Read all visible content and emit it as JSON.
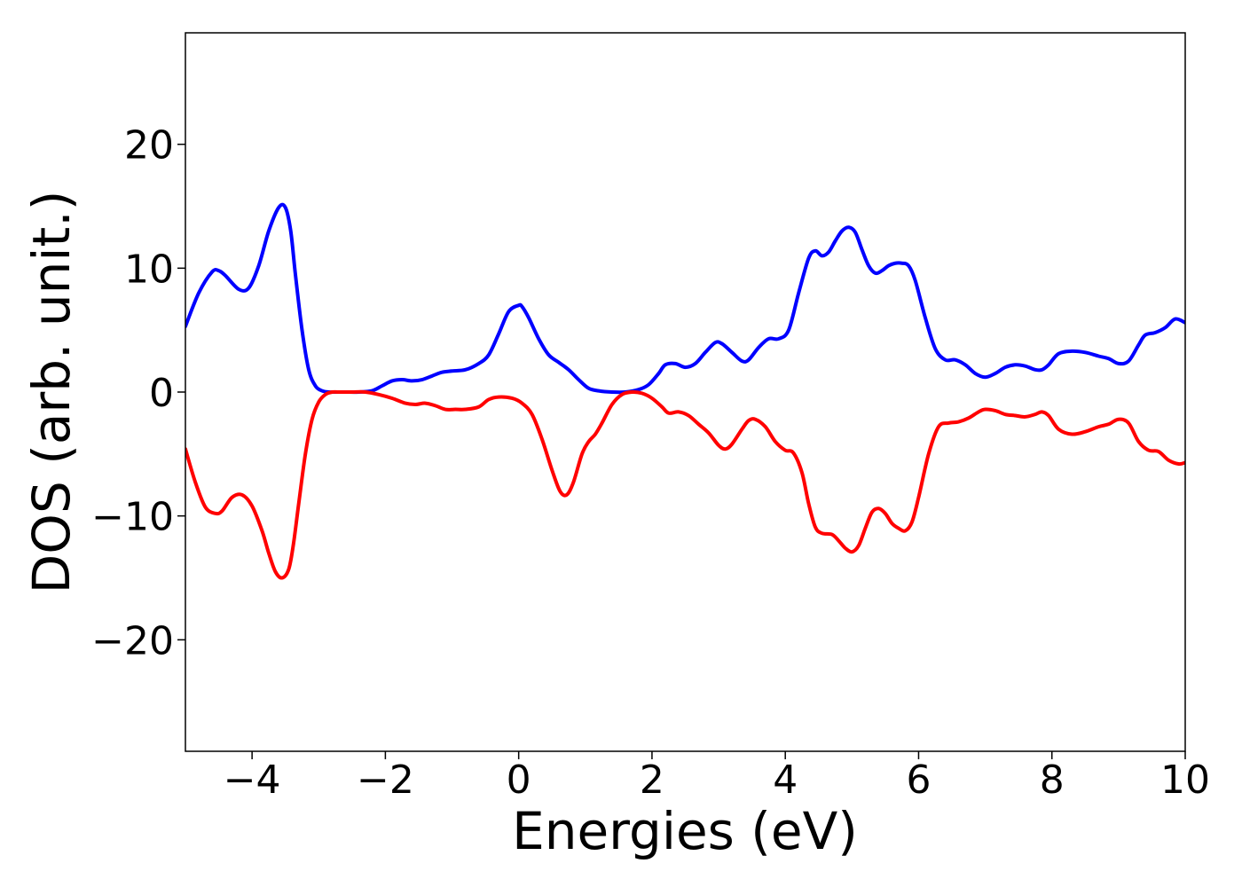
{
  "chart_data": {
    "type": "line",
    "title": "",
    "xlabel": "Energies (eV)",
    "ylabel": "DOS (arb. unit.)",
    "xlim": [
      -5,
      10
    ],
    "ylim": [
      -29,
      29
    ],
    "xticks": [
      -4,
      -2,
      0,
      2,
      4,
      6,
      8,
      10
    ],
    "xtick_labels": [
      "−4",
      "−2",
      "0",
      "2",
      "4",
      "6",
      "8",
      "10"
    ],
    "yticks": [
      -20,
      -10,
      0,
      10,
      20
    ],
    "ytick_labels": [
      "−20",
      "−10",
      "0",
      "10",
      "20"
    ],
    "grid": false,
    "legend": "none",
    "series": [
      {
        "color": "#0000ff",
        "x": [
          -5.0,
          -4.8,
          -4.6,
          -4.5,
          -4.4,
          -4.2,
          -4.05,
          -3.9,
          -3.75,
          -3.6,
          -3.5,
          -3.42,
          -3.35,
          -3.25,
          -3.15,
          -3.05,
          -2.95,
          -2.85,
          -2.75,
          -2.6,
          -2.4,
          -2.2,
          -2.05,
          -1.9,
          -1.75,
          -1.6,
          -1.45,
          -1.3,
          -1.15,
          -1.0,
          -0.8,
          -0.6,
          -0.45,
          -0.3,
          -0.15,
          0.0,
          0.05,
          0.15,
          0.3,
          0.45,
          0.6,
          0.75,
          0.9,
          1.05,
          1.2,
          1.4,
          1.6,
          1.8,
          1.95,
          2.1,
          2.2,
          2.35,
          2.5,
          2.65,
          2.8,
          2.95,
          3.05,
          3.2,
          3.35,
          3.45,
          3.6,
          3.75,
          3.9,
          4.05,
          4.2,
          4.35,
          4.45,
          4.55,
          4.65,
          4.75,
          4.85,
          4.95,
          5.05,
          5.15,
          5.25,
          5.35,
          5.45,
          5.55,
          5.65,
          5.75,
          5.85,
          5.95,
          6.1,
          6.25,
          6.4,
          6.55,
          6.7,
          6.85,
          7.0,
          7.15,
          7.3,
          7.45,
          7.6,
          7.75,
          7.85,
          7.95,
          8.1,
          8.3,
          8.5,
          8.7,
          8.85,
          9.0,
          9.15,
          9.3,
          9.4,
          9.55,
          9.7,
          9.85,
          10.0
        ],
        "y": [
          5.3,
          8.0,
          9.7,
          9.8,
          9.4,
          8.3,
          8.4,
          10.2,
          13.0,
          14.9,
          14.9,
          13.0,
          9.5,
          5.0,
          1.8,
          0.5,
          0.1,
          0.0,
          0.0,
          0.0,
          0.0,
          0.1,
          0.5,
          0.9,
          1.0,
          0.9,
          1.0,
          1.3,
          1.6,
          1.7,
          1.8,
          2.3,
          3.0,
          4.7,
          6.5,
          7.0,
          6.9,
          6.0,
          4.3,
          3.0,
          2.4,
          1.8,
          1.0,
          0.3,
          0.1,
          0.0,
          0.0,
          0.2,
          0.6,
          1.5,
          2.2,
          2.3,
          2.0,
          2.3,
          3.2,
          4.0,
          3.9,
          3.2,
          2.5,
          2.6,
          3.6,
          4.3,
          4.3,
          5.0,
          8.0,
          10.8,
          11.4,
          11.0,
          11.3,
          12.2,
          13.0,
          13.3,
          12.9,
          11.5,
          10.2,
          9.6,
          9.8,
          10.2,
          10.4,
          10.4,
          10.2,
          9.0,
          6.0,
          3.5,
          2.6,
          2.6,
          2.2,
          1.5,
          1.2,
          1.5,
          2.0,
          2.2,
          2.1,
          1.8,
          1.8,
          2.2,
          3.1,
          3.3,
          3.2,
          2.9,
          2.7,
          2.3,
          2.5,
          3.8,
          4.6,
          4.8,
          5.2,
          5.9,
          5.6
        ]
      },
      {
        "color": "#ff0000",
        "x": [
          -5.0,
          -4.85,
          -4.7,
          -4.55,
          -4.45,
          -4.3,
          -4.15,
          -4.0,
          -3.85,
          -3.75,
          -3.65,
          -3.55,
          -3.45,
          -3.38,
          -3.3,
          -3.2,
          -3.1,
          -3.0,
          -2.9,
          -2.8,
          -2.7,
          -2.5,
          -2.3,
          -2.1,
          -1.9,
          -1.7,
          -1.55,
          -1.4,
          -1.25,
          -1.1,
          -0.95,
          -0.8,
          -0.6,
          -0.45,
          -0.3,
          -0.1,
          0.05,
          0.2,
          0.35,
          0.5,
          0.62,
          0.72,
          0.82,
          0.95,
          1.05,
          1.15,
          1.25,
          1.4,
          1.55,
          1.7,
          1.85,
          2.0,
          2.15,
          2.25,
          2.4,
          2.55,
          2.7,
          2.85,
          3.0,
          3.1,
          3.2,
          3.35,
          3.45,
          3.55,
          3.7,
          3.85,
          4.0,
          4.12,
          4.25,
          4.35,
          4.45,
          4.55,
          4.7,
          4.8,
          4.9,
          5.0,
          5.1,
          5.2,
          5.3,
          5.4,
          5.5,
          5.6,
          5.7,
          5.8,
          5.9,
          6.0,
          6.15,
          6.3,
          6.45,
          6.6,
          6.75,
          6.9,
          7.0,
          7.15,
          7.3,
          7.45,
          7.6,
          7.75,
          7.85,
          7.95,
          8.1,
          8.3,
          8.5,
          8.7,
          8.85,
          9.0,
          9.15,
          9.3,
          9.45,
          9.6,
          9.75,
          9.9,
          10.0
        ],
        "y": [
          -4.6,
          -7.3,
          -9.3,
          -9.8,
          -9.6,
          -8.5,
          -8.3,
          -9.2,
          -11.2,
          -13.0,
          -14.5,
          -15.0,
          -14.3,
          -12.3,
          -9.0,
          -5.0,
          -2.2,
          -0.8,
          -0.2,
          0.0,
          0.0,
          0.0,
          0.0,
          -0.2,
          -0.5,
          -0.9,
          -1.0,
          -0.9,
          -1.1,
          -1.4,
          -1.4,
          -1.4,
          -1.2,
          -0.6,
          -0.4,
          -0.5,
          -0.9,
          -1.8,
          -3.8,
          -6.3,
          -8.0,
          -8.3,
          -7.3,
          -5.0,
          -4.0,
          -3.4,
          -2.5,
          -1.0,
          -0.2,
          0.0,
          -0.1,
          -0.5,
          -1.2,
          -1.7,
          -1.6,
          -1.9,
          -2.6,
          -3.3,
          -4.3,
          -4.6,
          -4.2,
          -3.0,
          -2.3,
          -2.2,
          -2.8,
          -4.0,
          -4.7,
          -4.9,
          -6.5,
          -9.0,
          -10.9,
          -11.4,
          -11.5,
          -12.0,
          -12.6,
          -12.9,
          -12.4,
          -11.0,
          -9.7,
          -9.4,
          -9.8,
          -10.6,
          -11.0,
          -11.2,
          -10.5,
          -8.5,
          -5.0,
          -2.8,
          -2.5,
          -2.4,
          -2.1,
          -1.6,
          -1.4,
          -1.5,
          -1.8,
          -1.9,
          -2.0,
          -1.8,
          -1.6,
          -1.9,
          -3.0,
          -3.4,
          -3.2,
          -2.8,
          -2.6,
          -2.2,
          -2.5,
          -4.0,
          -4.7,
          -4.8,
          -5.5,
          -5.8,
          -5.7
        ]
      }
    ]
  }
}
